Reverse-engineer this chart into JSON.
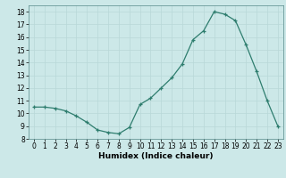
{
  "x": [
    0,
    1,
    2,
    3,
    4,
    5,
    6,
    7,
    8,
    9,
    10,
    11,
    12,
    13,
    14,
    15,
    16,
    17,
    18,
    19,
    20,
    21,
    22,
    23
  ],
  "y": [
    10.5,
    10.5,
    10.4,
    10.2,
    9.8,
    9.3,
    8.7,
    8.5,
    8.4,
    8.9,
    10.7,
    11.2,
    12.0,
    12.8,
    13.9,
    15.8,
    16.5,
    18.0,
    17.8,
    17.3,
    15.4,
    13.3,
    11.0,
    9.0
  ],
  "line_color": "#2e7d6e",
  "marker": "+",
  "background_color": "#cce8e8",
  "grid_color": "#b8d8d8",
  "xlabel": "Humidex (Indice chaleur)",
  "xlim": [
    -0.5,
    23.5
  ],
  "ylim": [
    8,
    18.5
  ],
  "yticks": [
    8,
    9,
    10,
    11,
    12,
    13,
    14,
    15,
    16,
    17,
    18
  ],
  "xticks": [
    0,
    1,
    2,
    3,
    4,
    5,
    6,
    7,
    8,
    9,
    10,
    11,
    12,
    13,
    14,
    15,
    16,
    17,
    18,
    19,
    20,
    21,
    22,
    23
  ],
  "xlabel_fontsize": 6.5,
  "tick_fontsize": 5.5
}
